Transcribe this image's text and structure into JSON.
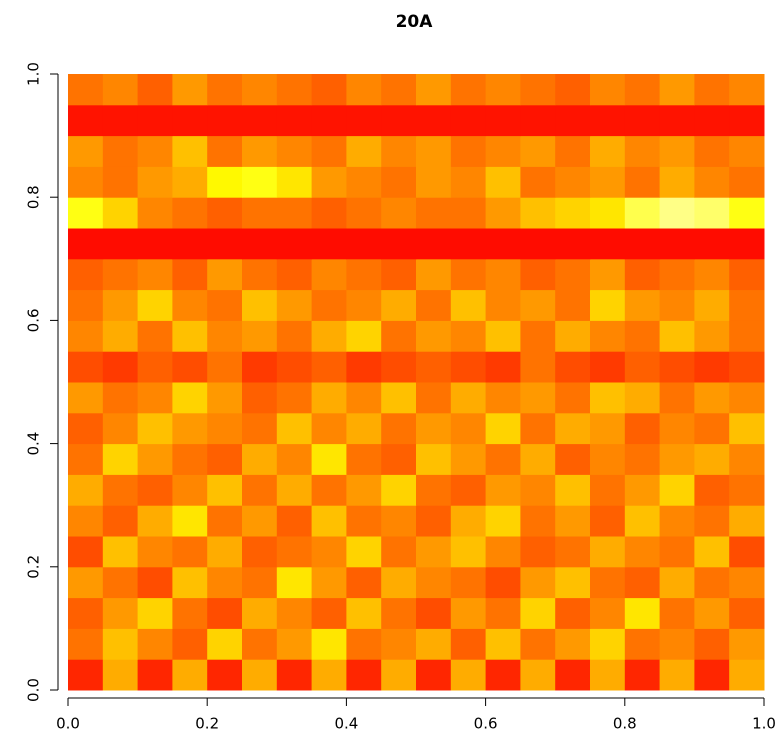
{
  "chart_data": {
    "type": "heatmap",
    "title": "20A",
    "colormap": [
      "#ff0000",
      "#ff8000",
      "#ffff00",
      "#ffffc0"
    ],
    "xlim": [
      0,
      1
    ],
    "ylim": [
      0,
      1
    ],
    "xticks": [
      {
        "value": 0,
        "label": "0.0"
      },
      0.2,
      0.4,
      0.6,
      0.8,
      {
        "value": 1,
        "label": "1.0"
      }
    ],
    "yticks": [
      {
        "value": 0,
        "label": "0.0"
      },
      0.2,
      0.4,
      0.6,
      0.8,
      {
        "value": 1,
        "label": "1.0"
      }
    ],
    "z": [
      [
        0.1,
        0.45,
        0.1,
        0.45,
        0.1,
        0.45,
        0.1,
        0.45,
        0.1,
        0.45,
        0.1,
        0.45,
        0.1,
        0.45,
        0.1,
        0.45,
        0.1,
        0.45,
        0.1,
        0.45
      ],
      [
        0.3,
        0.5,
        0.35,
        0.25,
        0.55,
        0.3,
        0.4,
        0.6,
        0.3,
        0.35,
        0.45,
        0.25,
        0.5,
        0.3,
        0.4,
        0.55,
        0.3,
        0.35,
        0.25,
        0.4
      ],
      [
        0.25,
        0.4,
        0.55,
        0.3,
        0.2,
        0.45,
        0.35,
        0.25,
        0.5,
        0.3,
        0.2,
        0.4,
        0.3,
        0.55,
        0.25,
        0.35,
        0.6,
        0.3,
        0.4,
        0.25
      ],
      [
        0.4,
        0.3,
        0.2,
        0.5,
        0.35,
        0.3,
        0.6,
        0.4,
        0.25,
        0.45,
        0.35,
        0.3,
        0.2,
        0.4,
        0.5,
        0.3,
        0.25,
        0.45,
        0.3,
        0.35
      ],
      [
        0.2,
        0.5,
        0.35,
        0.3,
        0.45,
        0.25,
        0.3,
        0.35,
        0.55,
        0.3,
        0.4,
        0.5,
        0.35,
        0.25,
        0.3,
        0.45,
        0.35,
        0.3,
        0.5,
        0.2
      ],
      [
        0.35,
        0.25,
        0.45,
        0.6,
        0.3,
        0.4,
        0.25,
        0.5,
        0.3,
        0.35,
        0.25,
        0.45,
        0.55,
        0.3,
        0.4,
        0.25,
        0.5,
        0.35,
        0.3,
        0.45
      ],
      [
        0.45,
        0.3,
        0.25,
        0.35,
        0.5,
        0.3,
        0.45,
        0.3,
        0.4,
        0.55,
        0.3,
        0.25,
        0.4,
        0.35,
        0.5,
        0.3,
        0.4,
        0.55,
        0.25,
        0.3
      ],
      [
        0.3,
        0.55,
        0.4,
        0.3,
        0.25,
        0.45,
        0.35,
        0.6,
        0.3,
        0.25,
        0.5,
        0.4,
        0.3,
        0.45,
        0.25,
        0.35,
        0.3,
        0.4,
        0.45,
        0.35
      ],
      [
        0.25,
        0.35,
        0.5,
        0.4,
        0.35,
        0.3,
        0.5,
        0.35,
        0.45,
        0.3,
        0.4,
        0.35,
        0.55,
        0.3,
        0.45,
        0.4,
        0.25,
        0.35,
        0.3,
        0.5
      ],
      [
        0.4,
        0.3,
        0.35,
        0.55,
        0.4,
        0.25,
        0.3,
        0.45,
        0.35,
        0.5,
        0.3,
        0.45,
        0.35,
        0.4,
        0.3,
        0.5,
        0.45,
        0.3,
        0.4,
        0.35
      ],
      [
        0.2,
        0.15,
        0.25,
        0.2,
        0.3,
        0.15,
        0.2,
        0.25,
        0.15,
        0.2,
        0.25,
        0.2,
        0.15,
        0.3,
        0.2,
        0.15,
        0.25,
        0.2,
        0.15,
        0.2
      ],
      [
        0.35,
        0.45,
        0.3,
        0.5,
        0.35,
        0.4,
        0.3,
        0.45,
        0.55,
        0.3,
        0.4,
        0.35,
        0.5,
        0.3,
        0.45,
        0.35,
        0.3,
        0.5,
        0.4,
        0.3
      ],
      [
        0.3,
        0.4,
        0.55,
        0.35,
        0.3,
        0.5,
        0.4,
        0.3,
        0.35,
        0.45,
        0.3,
        0.5,
        0.35,
        0.4,
        0.3,
        0.55,
        0.4,
        0.35,
        0.45,
        0.3
      ],
      [
        0.25,
        0.3,
        0.35,
        0.25,
        0.4,
        0.3,
        0.25,
        0.35,
        0.3,
        0.25,
        0.4,
        0.3,
        0.35,
        0.25,
        0.3,
        0.4,
        0.25,
        0.3,
        0.35,
        0.25
      ],
      [
        0.03,
        0.03,
        0.03,
        0.03,
        0.03,
        0.03,
        0.03,
        0.03,
        0.03,
        0.03,
        0.03,
        0.03,
        0.03,
        0.03,
        0.03,
        0.03,
        0.03,
        0.03,
        0.03,
        0.03
      ],
      [
        0.7,
        0.55,
        0.35,
        0.3,
        0.25,
        0.3,
        0.3,
        0.25,
        0.3,
        0.35,
        0.3,
        0.3,
        0.4,
        0.5,
        0.55,
        0.6,
        0.8,
        0.9,
        0.85,
        0.7
      ],
      [
        0.35,
        0.3,
        0.4,
        0.45,
        0.65,
        0.7,
        0.6,
        0.4,
        0.35,
        0.3,
        0.4,
        0.35,
        0.5,
        0.3,
        0.35,
        0.4,
        0.3,
        0.45,
        0.35,
        0.3
      ],
      [
        0.4,
        0.3,
        0.35,
        0.5,
        0.3,
        0.4,
        0.35,
        0.3,
        0.45,
        0.35,
        0.4,
        0.3,
        0.35,
        0.4,
        0.3,
        0.45,
        0.35,
        0.4,
        0.3,
        0.35
      ],
      [
        0.05,
        0.05,
        0.05,
        0.05,
        0.05,
        0.05,
        0.05,
        0.05,
        0.05,
        0.05,
        0.05,
        0.05,
        0.05,
        0.05,
        0.05,
        0.05,
        0.05,
        0.05,
        0.05,
        0.05
      ],
      [
        0.3,
        0.35,
        0.25,
        0.4,
        0.3,
        0.35,
        0.3,
        0.25,
        0.35,
        0.3,
        0.4,
        0.3,
        0.35,
        0.3,
        0.25,
        0.35,
        0.3,
        0.4,
        0.3,
        0.35
      ]
    ]
  }
}
